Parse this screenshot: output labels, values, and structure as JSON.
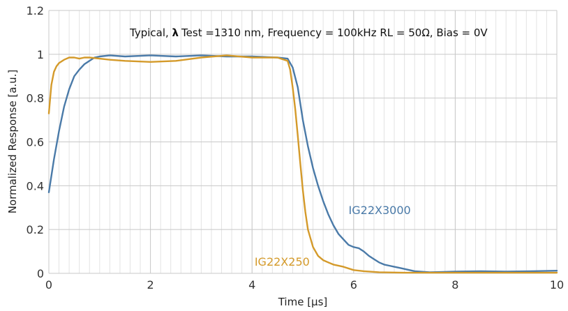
{
  "chart_data": {
    "type": "line",
    "title": "",
    "annotation": {
      "prefix": "Typical, ",
      "lambda": "λ",
      "rest": "Test =1310 nm,  Frequency = 100kHz RL = 50Ω, Bias = 0V"
    },
    "xlabel": "Time [µs]",
    "ylabel": "Normalized Response [a.u.]",
    "xlim": [
      0,
      10
    ],
    "ylim": [
      0,
      1.2
    ],
    "x_ticks": [
      "0",
      "2",
      "4",
      "6",
      "8",
      "10"
    ],
    "y_ticks": [
      "0",
      "0.2",
      "0.4",
      "0.6",
      "0.8",
      "1",
      "1.2"
    ],
    "x_minor_step": 0.2,
    "grid": true,
    "colors": {
      "IG22X3000": "#4a7aa8",
      "IG22X250": "#d49a2a",
      "grid_major": "#c8c8c8",
      "grid_minor": "#e3e3e3"
    },
    "series": [
      {
        "name": "IG22X3000",
        "label_at": [
          5.9,
          0.27
        ],
        "x": [
          0,
          0.1,
          0.2,
          0.3,
          0.4,
          0.5,
          0.6,
          0.7,
          0.8,
          0.9,
          1.0,
          1.2,
          1.5,
          2.0,
          2.5,
          3.0,
          3.5,
          4.0,
          4.5,
          4.7,
          4.8,
          4.9,
          5.0,
          5.1,
          5.2,
          5.3,
          5.4,
          5.5,
          5.6,
          5.7,
          5.8,
          5.9,
          6.0,
          6.1,
          6.2,
          6.3,
          6.4,
          6.5,
          6.6,
          6.7,
          6.8,
          6.9,
          7.0,
          7.2,
          7.5,
          8.0,
          8.5,
          9.0,
          9.5,
          10.0
        ],
        "y": [
          0.37,
          0.52,
          0.65,
          0.76,
          0.84,
          0.9,
          0.93,
          0.955,
          0.97,
          0.985,
          0.99,
          0.995,
          0.99,
          0.995,
          0.99,
          0.995,
          0.99,
          0.99,
          0.985,
          0.98,
          0.94,
          0.85,
          0.7,
          0.58,
          0.48,
          0.4,
          0.33,
          0.27,
          0.22,
          0.18,
          0.155,
          0.13,
          0.12,
          0.115,
          0.1,
          0.08,
          0.065,
          0.05,
          0.04,
          0.035,
          0.03,
          0.025,
          0.02,
          0.01,
          0.005,
          0.008,
          0.01,
          0.008,
          0.01,
          0.012
        ]
      },
      {
        "name": "IG22X250",
        "label_at": [
          4.05,
          0.035
        ],
        "x": [
          0,
          0.05,
          0.1,
          0.15,
          0.2,
          0.3,
          0.4,
          0.5,
          0.6,
          0.7,
          0.8,
          1.0,
          1.2,
          1.5,
          2.0,
          2.5,
          3.0,
          3.5,
          4.0,
          4.5,
          4.7,
          4.75,
          4.8,
          4.85,
          4.9,
          4.95,
          5.0,
          5.05,
          5.1,
          5.2,
          5.3,
          5.4,
          5.5,
          5.6,
          5.8,
          6.0,
          6.2,
          6.5,
          7.0,
          8.0,
          9.0,
          10.0
        ],
        "y": [
          0.73,
          0.86,
          0.92,
          0.945,
          0.96,
          0.975,
          0.985,
          0.985,
          0.98,
          0.985,
          0.985,
          0.98,
          0.975,
          0.97,
          0.965,
          0.97,
          0.985,
          0.995,
          0.985,
          0.985,
          0.97,
          0.93,
          0.85,
          0.75,
          0.63,
          0.5,
          0.38,
          0.28,
          0.2,
          0.12,
          0.08,
          0.06,
          0.05,
          0.04,
          0.03,
          0.015,
          0.01,
          0.005,
          0.003,
          0.003,
          0.003,
          0.003
        ]
      }
    ]
  }
}
